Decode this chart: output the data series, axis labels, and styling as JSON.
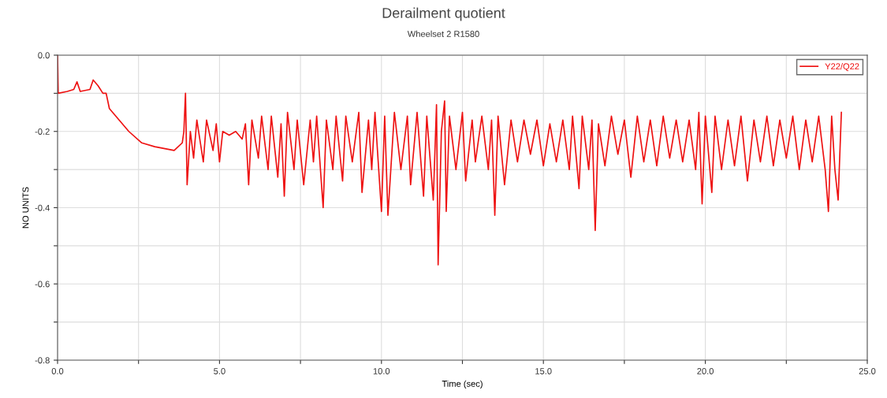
{
  "chart_data": {
    "type": "line",
    "title": "Derailment quotient",
    "subtitle": "Wheelset 2 R1580",
    "xlabel": "Time (sec)",
    "ylabel": "NO UNITS",
    "xlim": [
      0,
      25
    ],
    "ylim": [
      -0.8,
      0
    ],
    "xticks": [
      {
        "value": 0,
        "label": "0.0"
      },
      {
        "value": 2.5,
        "label": null
      },
      {
        "value": 5,
        "label": "5.0"
      },
      {
        "value": 7.5,
        "label": null
      },
      {
        "value": 10,
        "label": "10.0"
      },
      {
        "value": 12.5,
        "label": null
      },
      {
        "value": 15,
        "label": "15.0"
      },
      {
        "value": 17.5,
        "label": null
      },
      {
        "value": 20,
        "label": "20.0"
      },
      {
        "value": 22.5,
        "label": null
      },
      {
        "value": 25,
        "label": "25.0"
      }
    ],
    "yticks": [
      {
        "value": -0.8,
        "label": "-0.8"
      },
      {
        "value": -0.7,
        "label": null
      },
      {
        "value": -0.6,
        "label": "-0.6"
      },
      {
        "value": -0.5,
        "label": null
      },
      {
        "value": -0.4,
        "label": "-0.4"
      },
      {
        "value": -0.3,
        "label": null
      },
      {
        "value": -0.2,
        "label": "-0.2"
      },
      {
        "value": -0.1,
        "label": null
      },
      {
        "value": 0,
        "label": "0.0"
      }
    ],
    "grid": true,
    "legend": "top right",
    "marker": "none",
    "line_style": "solid",
    "series": [
      {
        "name": "Y22/Q22",
        "color": "#ee1111",
        "x": [
          0,
          0.02,
          0.3,
          0.5,
          0.6,
          0.7,
          1.0,
          1.1,
          1.25,
          1.4,
          1.5,
          1.6,
          1.9,
          2.2,
          2.6,
          3.0,
          3.6,
          3.85,
          3.9,
          3.95,
          4.0,
          4.1,
          4.2,
          4.3,
          4.5,
          4.6,
          4.8,
          4.9,
          5.0,
          5.1,
          5.3,
          5.5,
          5.7,
          5.8,
          5.9,
          6.0,
          6.2,
          6.3,
          6.5,
          6.6,
          6.8,
          6.9,
          7.0,
          7.1,
          7.3,
          7.4,
          7.6,
          7.8,
          7.9,
          8.0,
          8.2,
          8.3,
          8.5,
          8.6,
          8.8,
          8.9,
          9.1,
          9.3,
          9.4,
          9.6,
          9.7,
          9.8,
          10.0,
          10.1,
          10.2,
          10.4,
          10.6,
          10.8,
          10.9,
          11.1,
          11.3,
          11.4,
          11.6,
          11.7,
          11.75,
          11.85,
          11.95,
          12.0,
          12.1,
          12.3,
          12.5,
          12.6,
          12.8,
          12.9,
          13.1,
          13.3,
          13.4,
          13.5,
          13.6,
          13.8,
          14.0,
          14.2,
          14.4,
          14.6,
          14.8,
          15.0,
          15.2,
          15.4,
          15.6,
          15.8,
          15.9,
          16.1,
          16.2,
          16.4,
          16.5,
          16.6,
          16.7,
          16.9,
          17.1,
          17.3,
          17.5,
          17.7,
          17.9,
          18.1,
          18.3,
          18.5,
          18.7,
          18.9,
          19.1,
          19.3,
          19.5,
          19.7,
          19.8,
          19.9,
          20.0,
          20.2,
          20.3,
          20.5,
          20.7,
          20.9,
          21.1,
          21.3,
          21.5,
          21.7,
          21.9,
          22.1,
          22.3,
          22.5,
          22.7,
          22.9,
          23.1,
          23.3,
          23.5,
          23.7,
          23.8,
          23.9,
          24.0,
          24.1,
          24.2
        ],
        "values": [
          0,
          -0.1,
          -0.095,
          -0.09,
          -0.07,
          -0.095,
          -0.09,
          -0.065,
          -0.08,
          -0.1,
          -0.1,
          -0.14,
          -0.17,
          -0.2,
          -0.23,
          -0.24,
          -0.25,
          -0.23,
          -0.2,
          -0.1,
          -0.34,
          -0.2,
          -0.27,
          -0.17,
          -0.28,
          -0.17,
          -0.25,
          -0.18,
          -0.28,
          -0.2,
          -0.21,
          -0.2,
          -0.22,
          -0.18,
          -0.34,
          -0.17,
          -0.27,
          -0.16,
          -0.3,
          -0.16,
          -0.32,
          -0.18,
          -0.37,
          -0.15,
          -0.3,
          -0.17,
          -0.34,
          -0.17,
          -0.28,
          -0.16,
          -0.4,
          -0.17,
          -0.3,
          -0.16,
          -0.33,
          -0.16,
          -0.28,
          -0.15,
          -0.36,
          -0.17,
          -0.3,
          -0.15,
          -0.41,
          -0.16,
          -0.42,
          -0.15,
          -0.3,
          -0.16,
          -0.34,
          -0.15,
          -0.37,
          -0.16,
          -0.38,
          -0.13,
          -0.55,
          -0.2,
          -0.12,
          -0.41,
          -0.16,
          -0.3,
          -0.15,
          -0.33,
          -0.17,
          -0.28,
          -0.16,
          -0.3,
          -0.17,
          -0.42,
          -0.16,
          -0.34,
          -0.17,
          -0.28,
          -0.17,
          -0.26,
          -0.17,
          -0.29,
          -0.18,
          -0.28,
          -0.17,
          -0.3,
          -0.16,
          -0.35,
          -0.16,
          -0.3,
          -0.17,
          -0.46,
          -0.18,
          -0.29,
          -0.16,
          -0.26,
          -0.17,
          -0.32,
          -0.16,
          -0.28,
          -0.17,
          -0.29,
          -0.16,
          -0.27,
          -0.17,
          -0.28,
          -0.17,
          -0.3,
          -0.15,
          -0.39,
          -0.16,
          -0.36,
          -0.16,
          -0.3,
          -0.17,
          -0.29,
          -0.16,
          -0.33,
          -0.17,
          -0.28,
          -0.16,
          -0.29,
          -0.17,
          -0.27,
          -0.16,
          -0.3,
          -0.17,
          -0.28,
          -0.16,
          -0.3,
          -0.41,
          -0.16,
          -0.3,
          -0.38,
          -0.15
        ]
      }
    ]
  }
}
